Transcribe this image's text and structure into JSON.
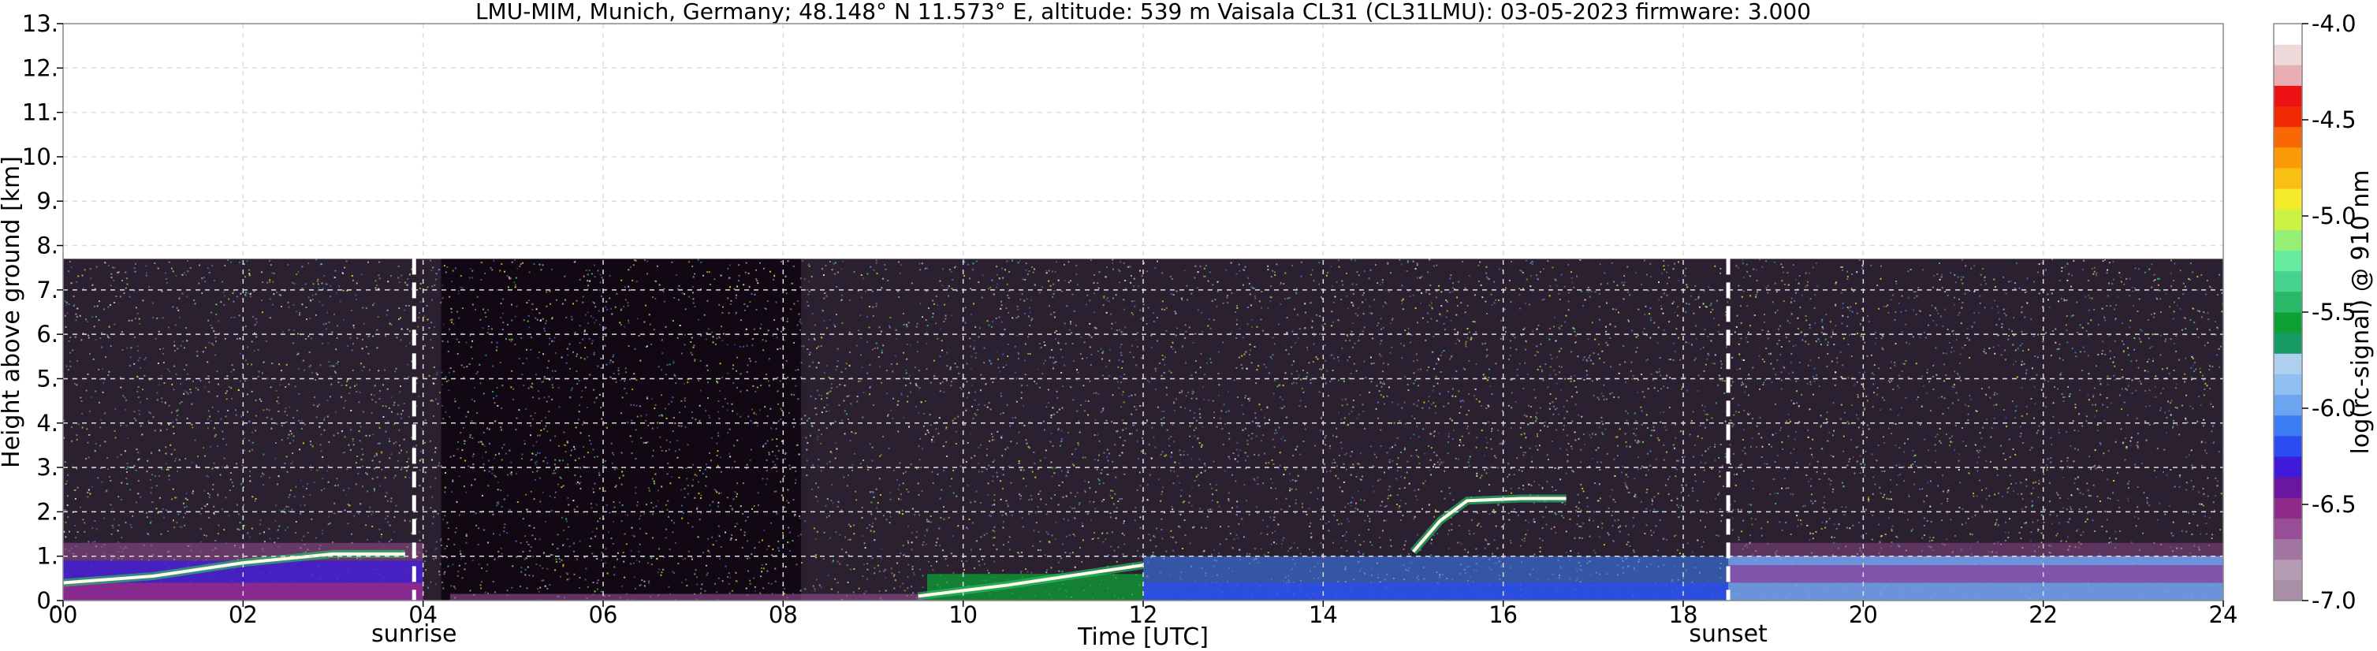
{
  "chart_data": {
    "type": "heatmap",
    "title": "LMU-MIM, Munich, Germany; 48.148° N 11.573° E, altitude: 539 m    Vaisala CL31 (CL31LMU): 03-05-2023    firmware: 3.000",
    "xlabel": "Time [UTC]",
    "ylabel": "Height above ground [km]",
    "xlim": [
      0,
      24
    ],
    "ylim": [
      0,
      13
    ],
    "x_ticks": [
      "00",
      "02",
      "04",
      "06",
      "08",
      "10",
      "12",
      "14",
      "16",
      "18",
      "20",
      "22",
      "24"
    ],
    "y_ticks": [
      "0.",
      "1.",
      "2.",
      "3.",
      "4.",
      "5.",
      "6.",
      "7.",
      "8.",
      "9.",
      "10.",
      "11.",
      "12.",
      "13."
    ],
    "grid": true,
    "max_data_height_km": 7.7,
    "markers": [
      {
        "label": "sunrise",
        "time": 3.9
      },
      {
        "label": "sunset",
        "time": 18.5
      }
    ],
    "colorbar": {
      "label": "log(rc-signal) @ 910 nm",
      "range": [
        -7.0,
        -4.0
      ],
      "tick_labels": [
        "-7.0",
        "-6.5",
        "-6.0",
        "-5.5",
        "-5.0",
        "-4.5",
        "-4.0"
      ],
      "colors": [
        "#a98ea8",
        "#b59cb4",
        "#a274a0",
        "#984e96",
        "#8e2a8a",
        "#6a16a0",
        "#3f1ad8",
        "#2a4cf0",
        "#3c7cf2",
        "#6ca4f0",
        "#90bef0",
        "#aecff0",
        "#169a66",
        "#0ea034",
        "#2ab868",
        "#44d28c",
        "#66ec9e",
        "#96f078",
        "#ccf244",
        "#f4ea2a",
        "#f8c012",
        "#fa9a06",
        "#f86804",
        "#f22a04",
        "#ee1214",
        "#e8aeb2",
        "#ecdada",
        "#ffffff"
      ]
    },
    "series": [
      {
        "type": "cloud_base",
        "points": [
          [
            0.0,
            0.4
          ],
          [
            1.0,
            0.55
          ],
          [
            2.0,
            0.85
          ],
          [
            3.0,
            1.05
          ],
          [
            3.8,
            1.05
          ]
        ]
      },
      {
        "type": "cloud_base",
        "points": [
          [
            9.5,
            0.1
          ],
          [
            10.5,
            0.35
          ],
          [
            11.5,
            0.65
          ],
          [
            12.0,
            0.8
          ]
        ]
      },
      {
        "type": "cloud_base",
        "points": [
          [
            15.0,
            1.1
          ],
          [
            15.3,
            1.8
          ],
          [
            15.6,
            2.25
          ],
          [
            16.2,
            2.3
          ],
          [
            16.7,
            2.3
          ]
        ]
      }
    ]
  }
}
